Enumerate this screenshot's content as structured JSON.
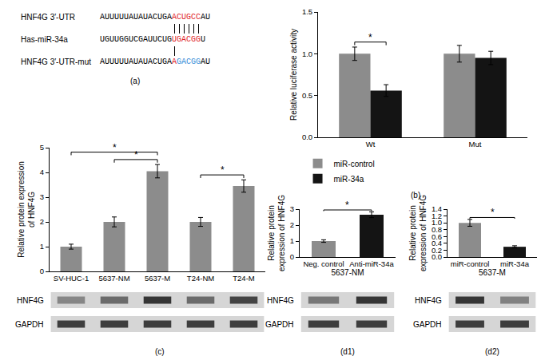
{
  "alignment": {
    "subtitle": "(a)",
    "rows": [
      {
        "label": "HNF4G 3′-UTR",
        "segments": [
          {
            "text": "AUUUUUAUAUACUGA"
          },
          {
            "text": "ACUGCC",
            "color": "#e0262b"
          },
          {
            "text": "AU"
          }
        ]
      },
      {
        "label": "Has-miR-34a",
        "segments": [
          {
            "text": "UGUUGGUCGAUUCUG"
          },
          {
            "text": "UGACGG",
            "color": "#e0262b"
          },
          {
            "text": "U"
          }
        ]
      },
      {
        "label": "HNF4G 3′-UTR-mut",
        "segments": [
          {
            "text": "AUUUUUAUAUACUGA"
          },
          {
            "text": "A",
            "color": "#e0262b"
          },
          {
            "text": "GACGG",
            "color": "#3a8fd9"
          },
          {
            "text": "AU"
          }
        ]
      }
    ]
  },
  "chart_data": [
    {
      "type": "bar",
      "subtitle": "(b)",
      "ylabel": "Relative luciferase activity",
      "categories": [
        "Wt",
        "Mut"
      ],
      "series": [
        {
          "name": "miR-control",
          "color": "#8c8c8c",
          "values": [
            1.0,
            1.0
          ],
          "errors": [
            0.08,
            0.1
          ]
        },
        {
          "name": "miR-34a",
          "color": "#141414",
          "values": [
            0.56,
            0.95
          ],
          "errors": [
            0.07,
            0.08
          ]
        }
      ],
      "ylim": [
        0,
        1.5
      ],
      "yticks": [
        {
          "value": 0,
          "label": "0.0"
        },
        {
          "value": 0.5,
          "label": "0.5"
        },
        {
          "value": 1,
          "label": "1.0"
        },
        {
          "value": 1.5,
          "label": "1.5"
        }
      ],
      "grid": false,
      "legend": "bottom left",
      "annotations": [
        {
          "text": "*",
          "category": "Wt",
          "from": "miR-control",
          "to": "miR-34a"
        }
      ]
    },
    {
      "type": "bar",
      "subtitle": "(c)",
      "ylabel": "Relative protein expression of HNF4G",
      "categories": [
        "SV-HUC-1",
        "5637-NM",
        "5637-M",
        "T24-NM",
        "T24-M"
      ],
      "values": [
        1.0,
        2.0,
        4.05,
        2.0,
        3.45
      ],
      "errors": [
        0.1,
        0.2,
        0.27,
        0.18,
        0.25
      ],
      "color": "#8c8c8c",
      "ylim": [
        0,
        5
      ],
      "yticks": [
        0,
        1,
        2,
        3,
        4,
        5
      ],
      "grid": false,
      "blot": [
        "HNF4G",
        "GAPDH"
      ],
      "annotations": [
        {
          "text": "*",
          "from": "SV-HUC-1",
          "to": "5637-M"
        },
        {
          "text": "*",
          "from": "5637-NM",
          "to": "5637-M"
        },
        {
          "text": "*",
          "from": "T24-NM",
          "to": "T24-M"
        }
      ]
    },
    {
      "type": "bar",
      "subtitle": "(d1)",
      "ylabel": "Relative protein expression of HNF4G",
      "xlabel": "5637-NM",
      "categories": [
        "Neg. control",
        "Anti-miR-34a"
      ],
      "values": [
        1.0,
        2.65
      ],
      "errors": [
        0.08,
        0.18
      ],
      "colors": [
        "#8c8c8c",
        "#141414"
      ],
      "ylim": [
        0,
        3
      ],
      "yticks": [
        0,
        1,
        2,
        3
      ],
      "grid": false,
      "blot": [
        "HNF4G",
        "GAPDH"
      ],
      "annotations": [
        {
          "text": "*",
          "from": "Neg. control",
          "to": "Anti-miR-34a"
        }
      ]
    },
    {
      "type": "bar",
      "subtitle": "(d2)",
      "ylabel": "Relative protein expression of HNF4G",
      "xlabel": "5637-M",
      "categories": [
        "miR-control",
        "miR-34a"
      ],
      "values": [
        1.0,
        0.3
      ],
      "errors": [
        0.1,
        0.03
      ],
      "colors": [
        "#8c8c8c",
        "#141414"
      ],
      "ylim": [
        0,
        1.4
      ],
      "yticks": [
        {
          "value": 0,
          "label": "0.0"
        },
        0.2,
        0.4,
        0.6,
        0.8,
        {
          "value": 1,
          "label": "1.0"
        },
        1.2,
        1.4
      ],
      "grid": false,
      "blot": [
        "HNF4G",
        "GAPDH"
      ],
      "annotations": [
        {
          "text": "*",
          "from": "miR-control",
          "to": "miR-34a"
        }
      ]
    }
  ]
}
